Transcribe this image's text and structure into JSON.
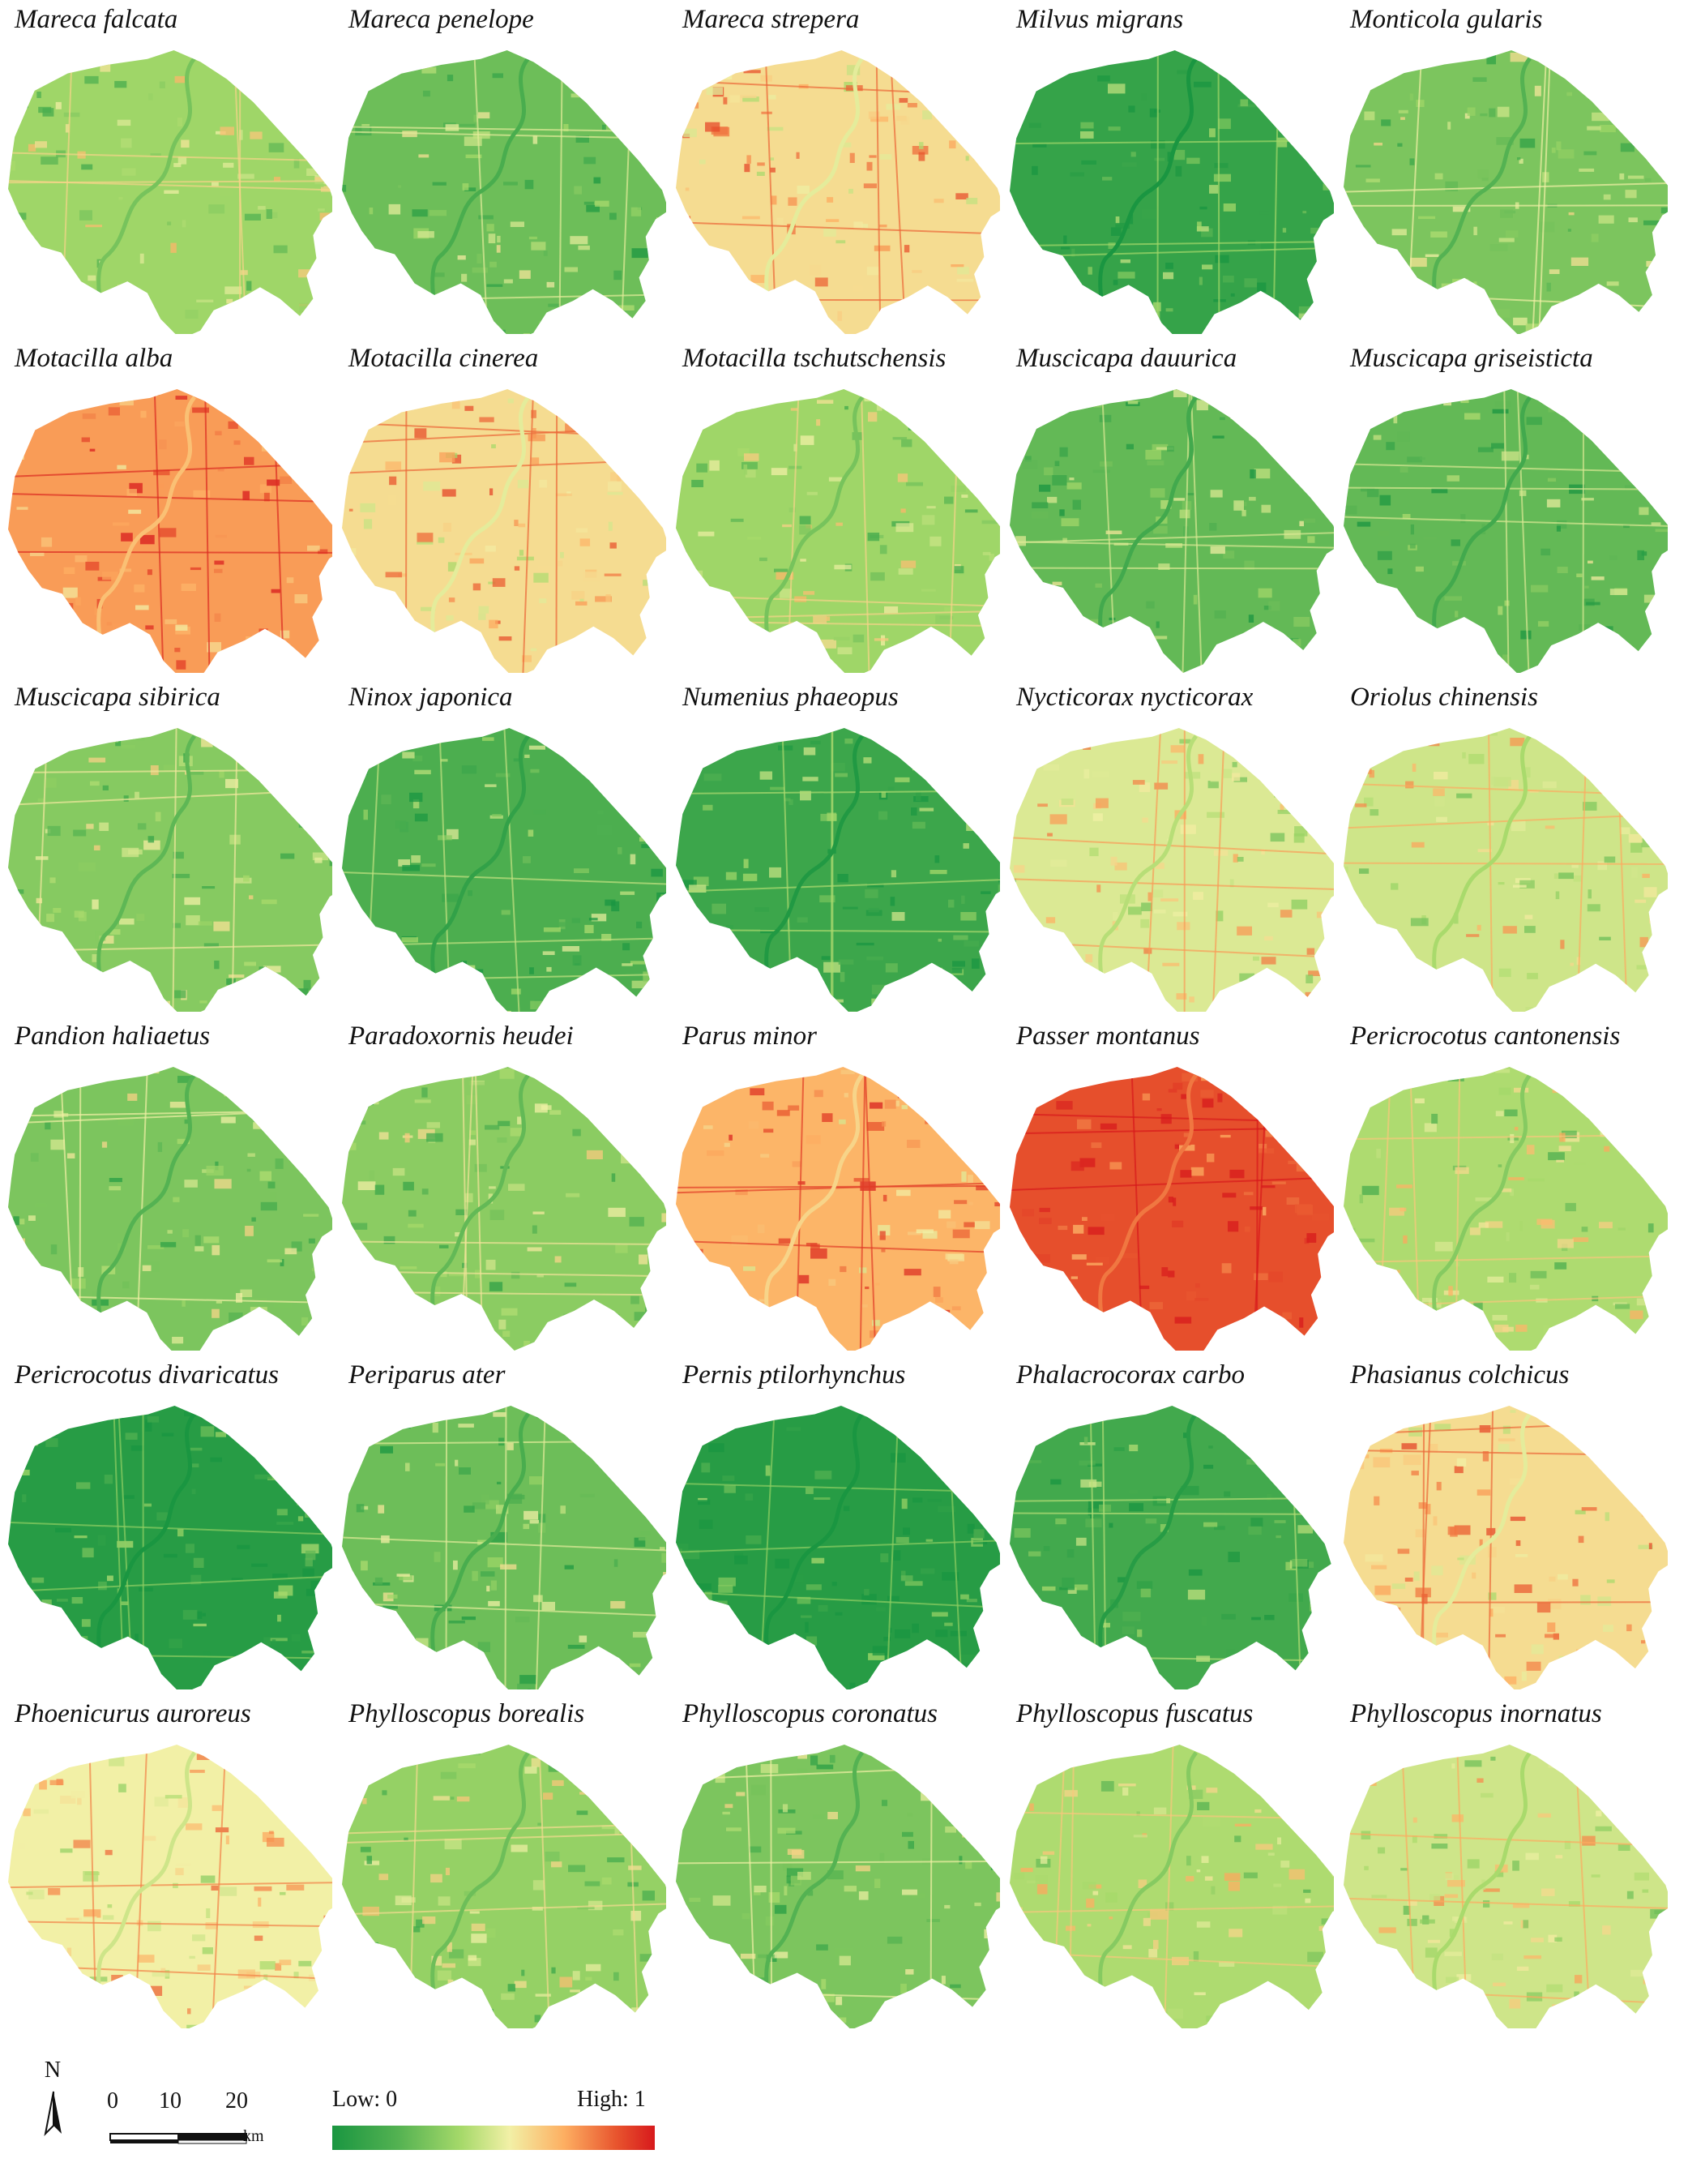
{
  "palette": {
    "low": "#1a9641",
    "midlow": "#a6d96a",
    "mid": "#f2f0a6",
    "midhigh": "#fdae61",
    "high": "#d7191c"
  },
  "panels": [
    {
      "title": "Mareca falcata",
      "suitability": 0.32
    },
    {
      "title": "Mareca penelope",
      "suitability": 0.22
    },
    {
      "title": "Mareca strepera",
      "suitability": 0.55
    },
    {
      "title": "Milvus migrans",
      "suitability": 0.08
    },
    {
      "title": "Monticola gularis",
      "suitability": 0.25
    },
    {
      "title": "Motacilla alba",
      "suitability": 0.7
    },
    {
      "title": "Motacilla cinerea",
      "suitability": 0.55
    },
    {
      "title": "Motacilla tschutschensis",
      "suitability": 0.32
    },
    {
      "title": "Muscicapa dauurica",
      "suitability": 0.2
    },
    {
      "title": "Muscicapa griseisticta",
      "suitability": 0.2
    },
    {
      "title": "Muscicapa sibirica",
      "suitability": 0.27
    },
    {
      "title": "Ninox japonica",
      "suitability": 0.15
    },
    {
      "title": "Numenius phaeopus",
      "suitability": 0.1
    },
    {
      "title": "Nycticorax nycticorax",
      "suitability": 0.45
    },
    {
      "title": "Oriolus chinensis",
      "suitability": 0.42
    },
    {
      "title": "Pandion haliaetus",
      "suitability": 0.25
    },
    {
      "title": "Paradoxornis heudei",
      "suitability": 0.28
    },
    {
      "title": "Parus minor",
      "suitability": 0.65
    },
    {
      "title": "Passer montanus",
      "suitability": 0.85
    },
    {
      "title": "Pericrocotus cantonensis",
      "suitability": 0.35
    },
    {
      "title": "Pericrocotus divaricatus",
      "suitability": 0.04
    },
    {
      "title": "Periparus ater",
      "suitability": 0.22
    },
    {
      "title": "Pernis ptilorhynchus",
      "suitability": 0.04
    },
    {
      "title": "Phalacrocorax carbo",
      "suitability": 0.12
    },
    {
      "title": "Phasianus colchicus",
      "suitability": 0.55
    },
    {
      "title": "Phoenicurus auroreus",
      "suitability": 0.5
    },
    {
      "title": "Phylloscopus borealis",
      "suitability": 0.3
    },
    {
      "title": "Phylloscopus coronatus",
      "suitability": 0.25
    },
    {
      "title": "Phylloscopus fuscatus",
      "suitability": 0.35
    },
    {
      "title": "Phylloscopus inornatus",
      "suitability": 0.42
    }
  ],
  "north": {
    "label": "N"
  },
  "scale_bar": {
    "ticks": [
      "0",
      "10",
      "20"
    ],
    "unit": "km"
  },
  "legend": {
    "low": "Low: 0",
    "high": "High: 1"
  }
}
